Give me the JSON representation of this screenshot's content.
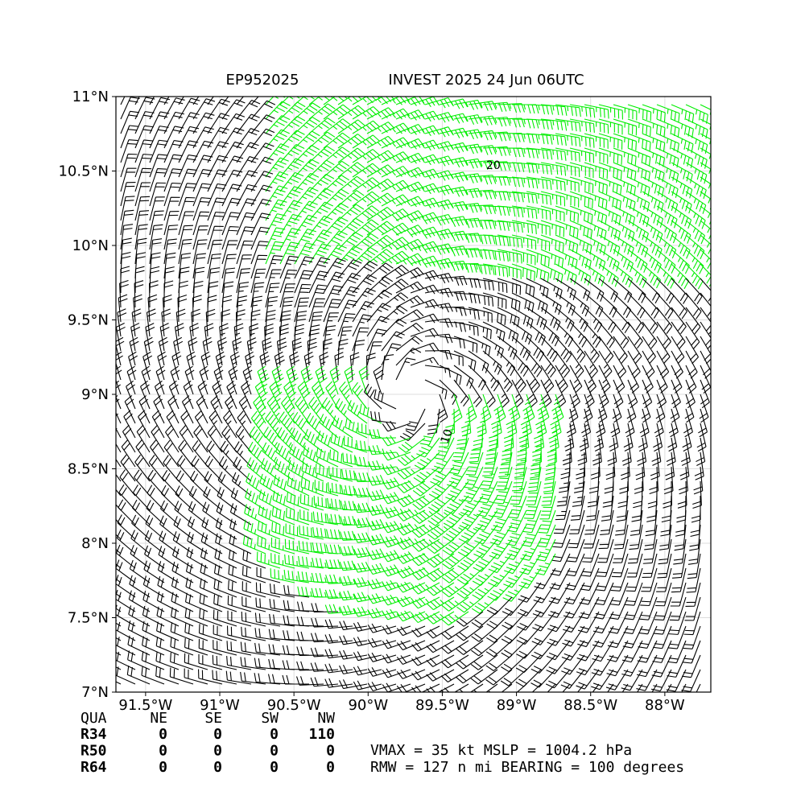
{
  "chart_data": {
    "type": "barbs",
    "title_left": "EP952025",
    "title_right": "INVEST 2025 24 Jun 06UTC",
    "xlim": [
      -91.7,
      -87.69
    ],
    "ylim": [
      7,
      11
    ],
    "xticks": [
      {
        "value": -91.5,
        "label": "91.5°W"
      },
      {
        "value": -91,
        "label": "91°W"
      },
      {
        "value": -90.5,
        "label": "90.5°W"
      },
      {
        "value": -90,
        "label": "90°W"
      },
      {
        "value": -89.5,
        "label": "89.5°W"
      },
      {
        "value": -89,
        "label": "89°W"
      },
      {
        "value": -88.5,
        "label": "88.5°W"
      },
      {
        "value": -88,
        "label": "88°W"
      }
    ],
    "yticks": [
      {
        "value": 7,
        "label": "7°N"
      },
      {
        "value": 7.5,
        "label": "7.5°N"
      },
      {
        "value": 8,
        "label": "8°N"
      },
      {
        "value": 8.5,
        "label": "8.5°N"
      },
      {
        "value": 9,
        "label": "9°N"
      },
      {
        "value": 9.5,
        "label": "9.5°N"
      },
      {
        "value": 10,
        "label": "10°N"
      },
      {
        "value": 10.5,
        "label": "10.5°N"
      },
      {
        "value": 11,
        "label": "11°N"
      }
    ],
    "grid": true,
    "colors": {
      "strong": "#00ee00",
      "weak": "#000000"
    },
    "annotations": [
      "20",
      "10"
    ],
    "table": {
      "header": [
        "QUA",
        "NE",
        "SE",
        "SW",
        "NW"
      ],
      "rows": [
        [
          "R34",
          "0",
          "0",
          "0",
          "110"
        ],
        [
          "R50",
          "0",
          "0",
          "0",
          "0"
        ],
        [
          "R64",
          "0",
          "0",
          "0",
          "0"
        ]
      ]
    },
    "footer": [
      "VMAX =  35 kt MSLP = 1004.2 hPa",
      "RMW = 127 n mi BEARING = 100 degrees"
    ]
  }
}
